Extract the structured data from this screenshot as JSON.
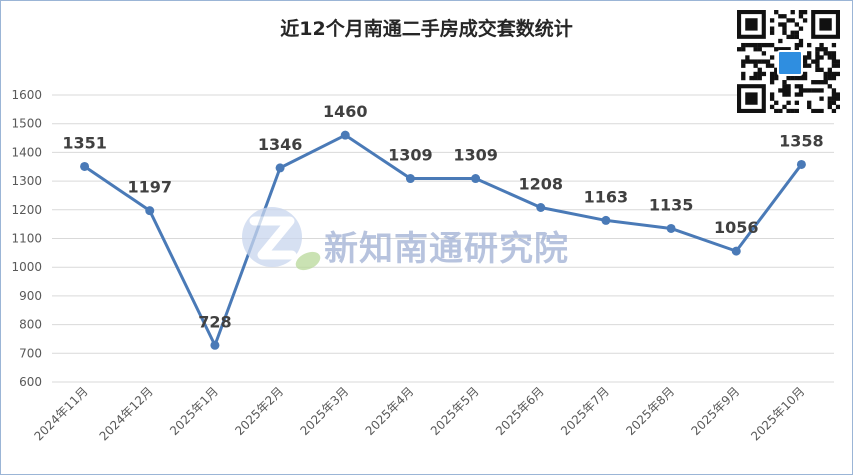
{
  "chart_data": {
    "type": "line",
    "title": "近12个月南通二手房成交套数统计",
    "categories": [
      "2024年11月",
      "2024年12月",
      "2025年1月",
      "2025年2月",
      "2025年3月",
      "2025年4月",
      "2025年5月",
      "2025年6月",
      "2025年7月",
      "2025年8月",
      "2025年9月",
      "2025年10月"
    ],
    "values": [
      1351,
      1197,
      728,
      1346,
      1460,
      1309,
      1309,
      1208,
      1163,
      1135,
      1056,
      1358
    ],
    "ylim": [
      600,
      1600
    ],
    "yticks": [
      "600",
      "700",
      "800",
      "900",
      "1000",
      "1100",
      "1200",
      "1300",
      "1400",
      "1500",
      "1600"
    ],
    "grid": true,
    "line_color": "#4a7ab7",
    "label_color": "#404040"
  },
  "watermark": {
    "text": "新知南通研究院"
  }
}
